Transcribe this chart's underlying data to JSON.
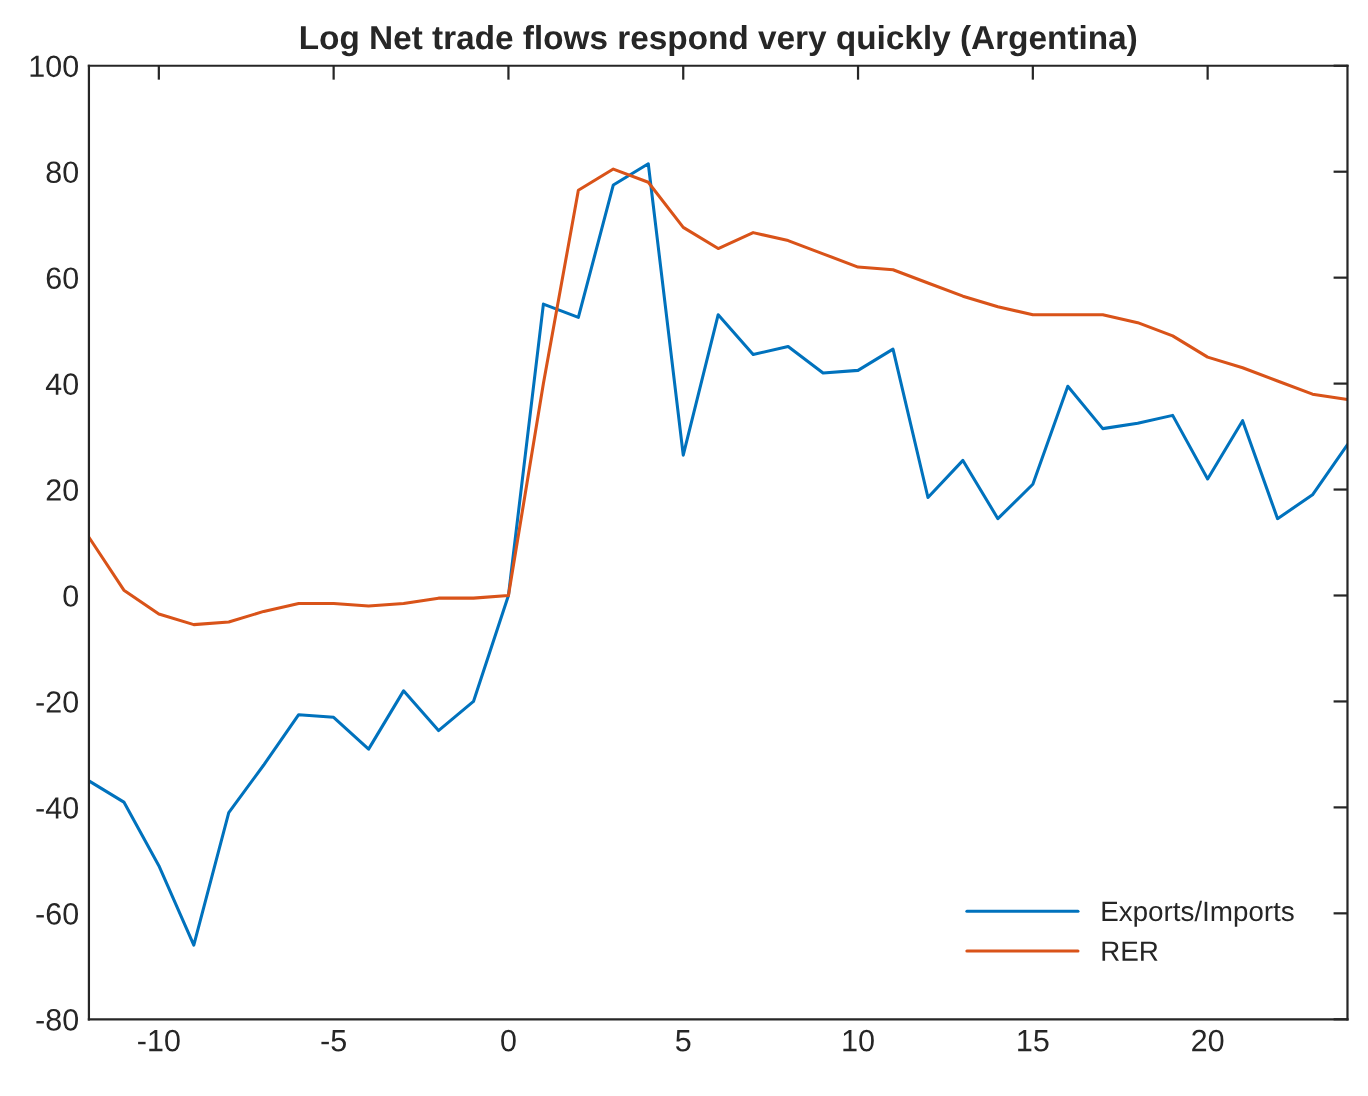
{
  "chart_data": {
    "type": "line",
    "title": "Log Net trade flows respond very quickly (Argentina)",
    "x": [
      -12,
      -11,
      -10,
      -9,
      -8,
      -7,
      -6,
      -5,
      -4,
      -3,
      -2,
      -1,
      0,
      1,
      2,
      3,
      4,
      5,
      6,
      7,
      8,
      9,
      10,
      11,
      12,
      13,
      14,
      15,
      16,
      17,
      18,
      19,
      20,
      21,
      22,
      23,
      24
    ],
    "series": [
      {
        "name": "Exports/Imports",
        "color": "#0072bd",
        "values": [
          -35,
          -39,
          -51,
          -66,
          -41,
          -32,
          -22.5,
          -23,
          -29,
          -18,
          -25.5,
          -20,
          0,
          55,
          52.5,
          77.5,
          81.5,
          26.5,
          53,
          45.5,
          47,
          42,
          42.5,
          46.5,
          18.5,
          25.5,
          14.5,
          21,
          39.5,
          31.5,
          32.5,
          34,
          22,
          33,
          14.5,
          19,
          28.5
        ]
      },
      {
        "name": "RER",
        "color": "#d95319",
        "values": [
          11,
          1,
          -3.5,
          -5.5,
          -5,
          -3,
          -1.5,
          -1.5,
          -2,
          -1.5,
          -0.5,
          -0.5,
          0,
          40,
          76.5,
          80.5,
          78,
          69.5,
          65.5,
          68.5,
          67,
          64.5,
          62,
          61.5,
          59,
          56.5,
          54.5,
          53,
          53,
          53,
          51.5,
          49,
          45,
          43,
          40.5,
          38,
          37
        ]
      }
    ],
    "xlim": [
      -12,
      24
    ],
    "xticks": [
      -10,
      -5,
      0,
      5,
      10,
      15,
      20
    ],
    "ylim": [
      -80,
      100
    ],
    "yticks": [
      -80,
      -60,
      -40,
      -20,
      0,
      20,
      40,
      60,
      80,
      100
    ],
    "grid": false,
    "legend": "bottom right"
  }
}
